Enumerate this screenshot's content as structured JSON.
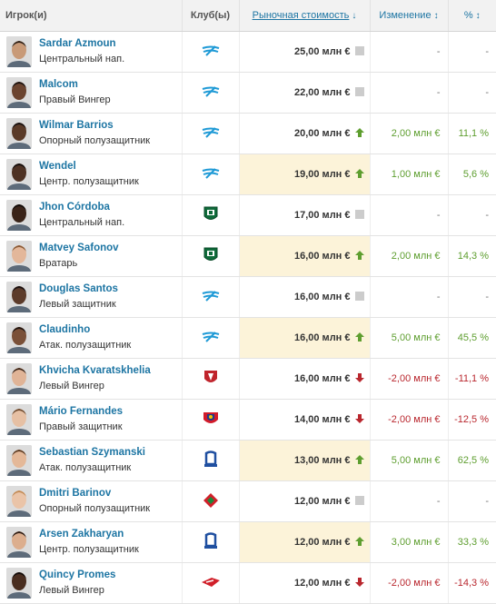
{
  "header": {
    "player": "Игрок(и)",
    "club": "Клуб(ы)",
    "value": "Рыночная стоимость",
    "value_sort": "↓",
    "change": "Изменение",
    "change_sort": "↕",
    "pct": "%",
    "pct_sort": "↕"
  },
  "colors": {
    "link": "#1d75a3",
    "up": "#5e9e2f",
    "down": "#b9272e",
    "highlight": "#fcf3d9"
  },
  "rows": [
    {
      "name": "Sardar Azmoun",
      "position": "Центральный нап.",
      "club": "zenit",
      "value": "25,00 млн €",
      "trend": "none",
      "change": "-",
      "pct": "-",
      "highlight": false,
      "skin": "#c89a78",
      "hair": "#2a1e16"
    },
    {
      "name": "Malcom",
      "position": "Правый Вингер",
      "club": "zenit",
      "value": "22,00 млн €",
      "trend": "none",
      "change": "-",
      "pct": "-",
      "highlight": false,
      "skin": "#6b4430",
      "hair": "#1a1210"
    },
    {
      "name": "Wilmar Barrios",
      "position": "Опорный полузащитник",
      "club": "zenit",
      "value": "20,00 млн €",
      "trend": "up",
      "change": "2,00 млн €",
      "pct": "11,1 %",
      "highlight": false,
      "skin": "#5a3a28",
      "hair": "#161010"
    },
    {
      "name": "Wendel",
      "position": "Центр. полузащитник",
      "club": "zenit",
      "value": "19,00 млн €",
      "trend": "up",
      "change": "1,00 млн €",
      "pct": "5,6 %",
      "highlight": true,
      "skin": "#4e3224",
      "hair": "#140e0c"
    },
    {
      "name": "Jhon Córdoba",
      "position": "Центральный нап.",
      "club": "krasnodar",
      "value": "17,00 млн €",
      "trend": "none",
      "change": "-",
      "pct": "-",
      "highlight": false,
      "skin": "#3a2419",
      "hair": "#100a08"
    },
    {
      "name": "Matvey Safonov",
      "position": "Вратарь",
      "club": "krasnodar",
      "value": "16,00 млн €",
      "trend": "up",
      "change": "2,00 млн €",
      "pct": "14,3 %",
      "highlight": true,
      "skin": "#e3b79a",
      "hair": "#8a5a36"
    },
    {
      "name": "Douglas Santos",
      "position": "Левый защитник",
      "club": "zenit",
      "value": "16,00 млн €",
      "trend": "none",
      "change": "-",
      "pct": "-",
      "highlight": false,
      "skin": "#5c3b2a",
      "hair": "#181010"
    },
    {
      "name": "Claudinho",
      "position": "Атак. полузащитник",
      "club": "zenit",
      "value": "16,00 млн €",
      "trend": "up",
      "change": "5,00 млн €",
      "pct": "45,5 %",
      "highlight": true,
      "skin": "#7a5038",
      "hair": "#1e1410"
    },
    {
      "name": "Khvicha Kvaratskhelia",
      "position": "Левый Вингер",
      "club": "rubin",
      "value": "16,00 млн €",
      "trend": "down",
      "change": "-2,00 млн €",
      "pct": "-11,1 %",
      "highlight": false,
      "skin": "#e0b497",
      "hair": "#3a2418"
    },
    {
      "name": "Mário Fernandes",
      "position": "Правый защитник",
      "club": "cska",
      "value": "14,00 млн €",
      "trend": "down",
      "change": "-2,00 млн €",
      "pct": "-12,5 %",
      "highlight": false,
      "skin": "#e6c0a4",
      "hair": "#6e4a2e"
    },
    {
      "name": "Sebastian Szymanski",
      "position": "Атак. полузащитник",
      "club": "dinamo",
      "value": "13,00 млн €",
      "trend": "up",
      "change": "5,00 млн €",
      "pct": "62,5 %",
      "highlight": true,
      "skin": "#e4b898",
      "hair": "#5a3a22"
    },
    {
      "name": "Dmitri Barinov",
      "position": "Опорный полузащитник",
      "club": "lokomotiv",
      "value": "12,00 млн €",
      "trend": "none",
      "change": "-",
      "pct": "-",
      "highlight": false,
      "skin": "#eac4a8",
      "hair": "#c28a55"
    },
    {
      "name": "Arsen Zakharyan",
      "position": "Центр. полузащитник",
      "club": "dinamo",
      "value": "12,00 млн €",
      "trend": "up",
      "change": "3,00 млн €",
      "pct": "33,3 %",
      "highlight": true,
      "skin": "#dcae8e",
      "hair": "#2c1c14"
    },
    {
      "name": "Quincy Promes",
      "position": "Левый Вингер",
      "club": "spartak",
      "value": "12,00 млн €",
      "trend": "down",
      "change": "-2,00 млн €",
      "pct": "-14,3 %",
      "highlight": false,
      "skin": "#4a2e20",
      "hair": "#120c0a"
    }
  ]
}
